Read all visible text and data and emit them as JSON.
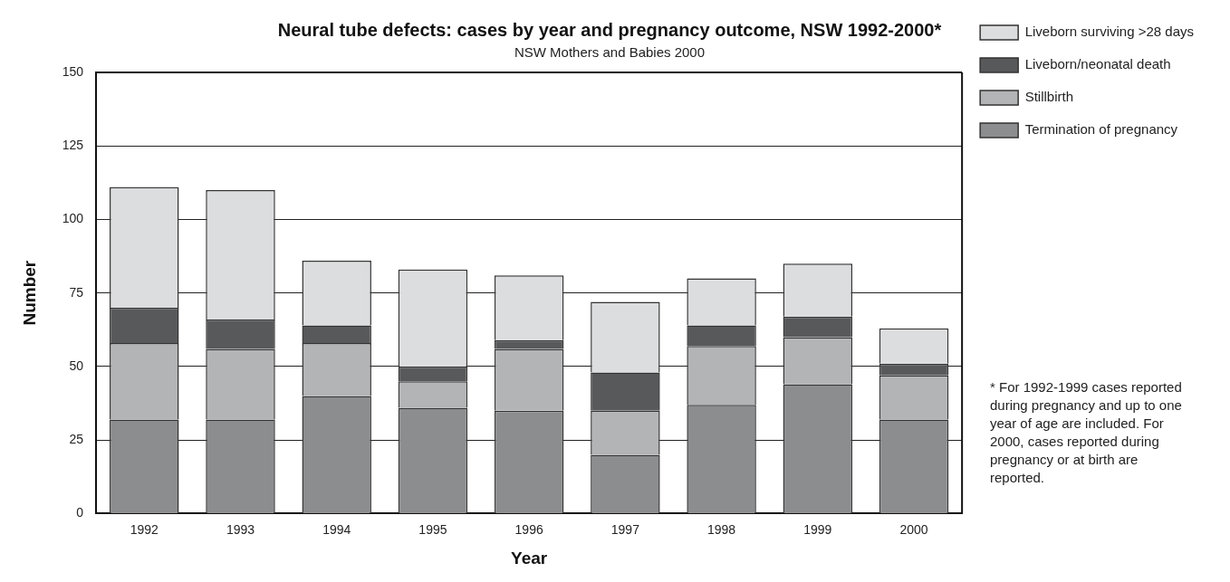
{
  "chart_data": {
    "type": "bar",
    "title": "Neural tube defects: cases by year and pregnancy outcome, NSW 1992-2000*",
    "subtitle": "NSW Mothers and Babies 2000",
    "xlabel": "Year",
    "ylabel": "Number",
    "categories": [
      "1992",
      "1993",
      "1994",
      "1995",
      "1996",
      "1997",
      "1998",
      "1999",
      "2000"
    ],
    "stacked": true,
    "series": [
      {
        "name": "Termination of pregnancy",
        "color": "#8c8d8f",
        "values": [
          32,
          32,
          40,
          36,
          35,
          20,
          37,
          44,
          32
        ]
      },
      {
        "name": "Stillbirth",
        "color": "#b3b4b6",
        "values": [
          26,
          24,
          18,
          9,
          21,
          15,
          20,
          16,
          15
        ]
      },
      {
        "name": "Liveborn/neonatal death",
        "color": "#58595b",
        "values": [
          12,
          10,
          6,
          5,
          3,
          13,
          7,
          7,
          4
        ]
      },
      {
        "name": "Liveborn surviving >28 days",
        "color": "#dcdddf",
        "values": [
          41,
          44,
          22,
          33,
          22,
          24,
          16,
          18,
          12
        ]
      }
    ],
    "ylim": [
      0,
      150
    ],
    "yticks": [
      0,
      25,
      50,
      75,
      100,
      125,
      150
    ],
    "grid": "y",
    "legend": "right",
    "annotations": [
      "* For 1992-1999 cases reported during pregnancy and up to one year of age are included. For 2000, cases reported during pregnancy or at birth are reported."
    ]
  }
}
